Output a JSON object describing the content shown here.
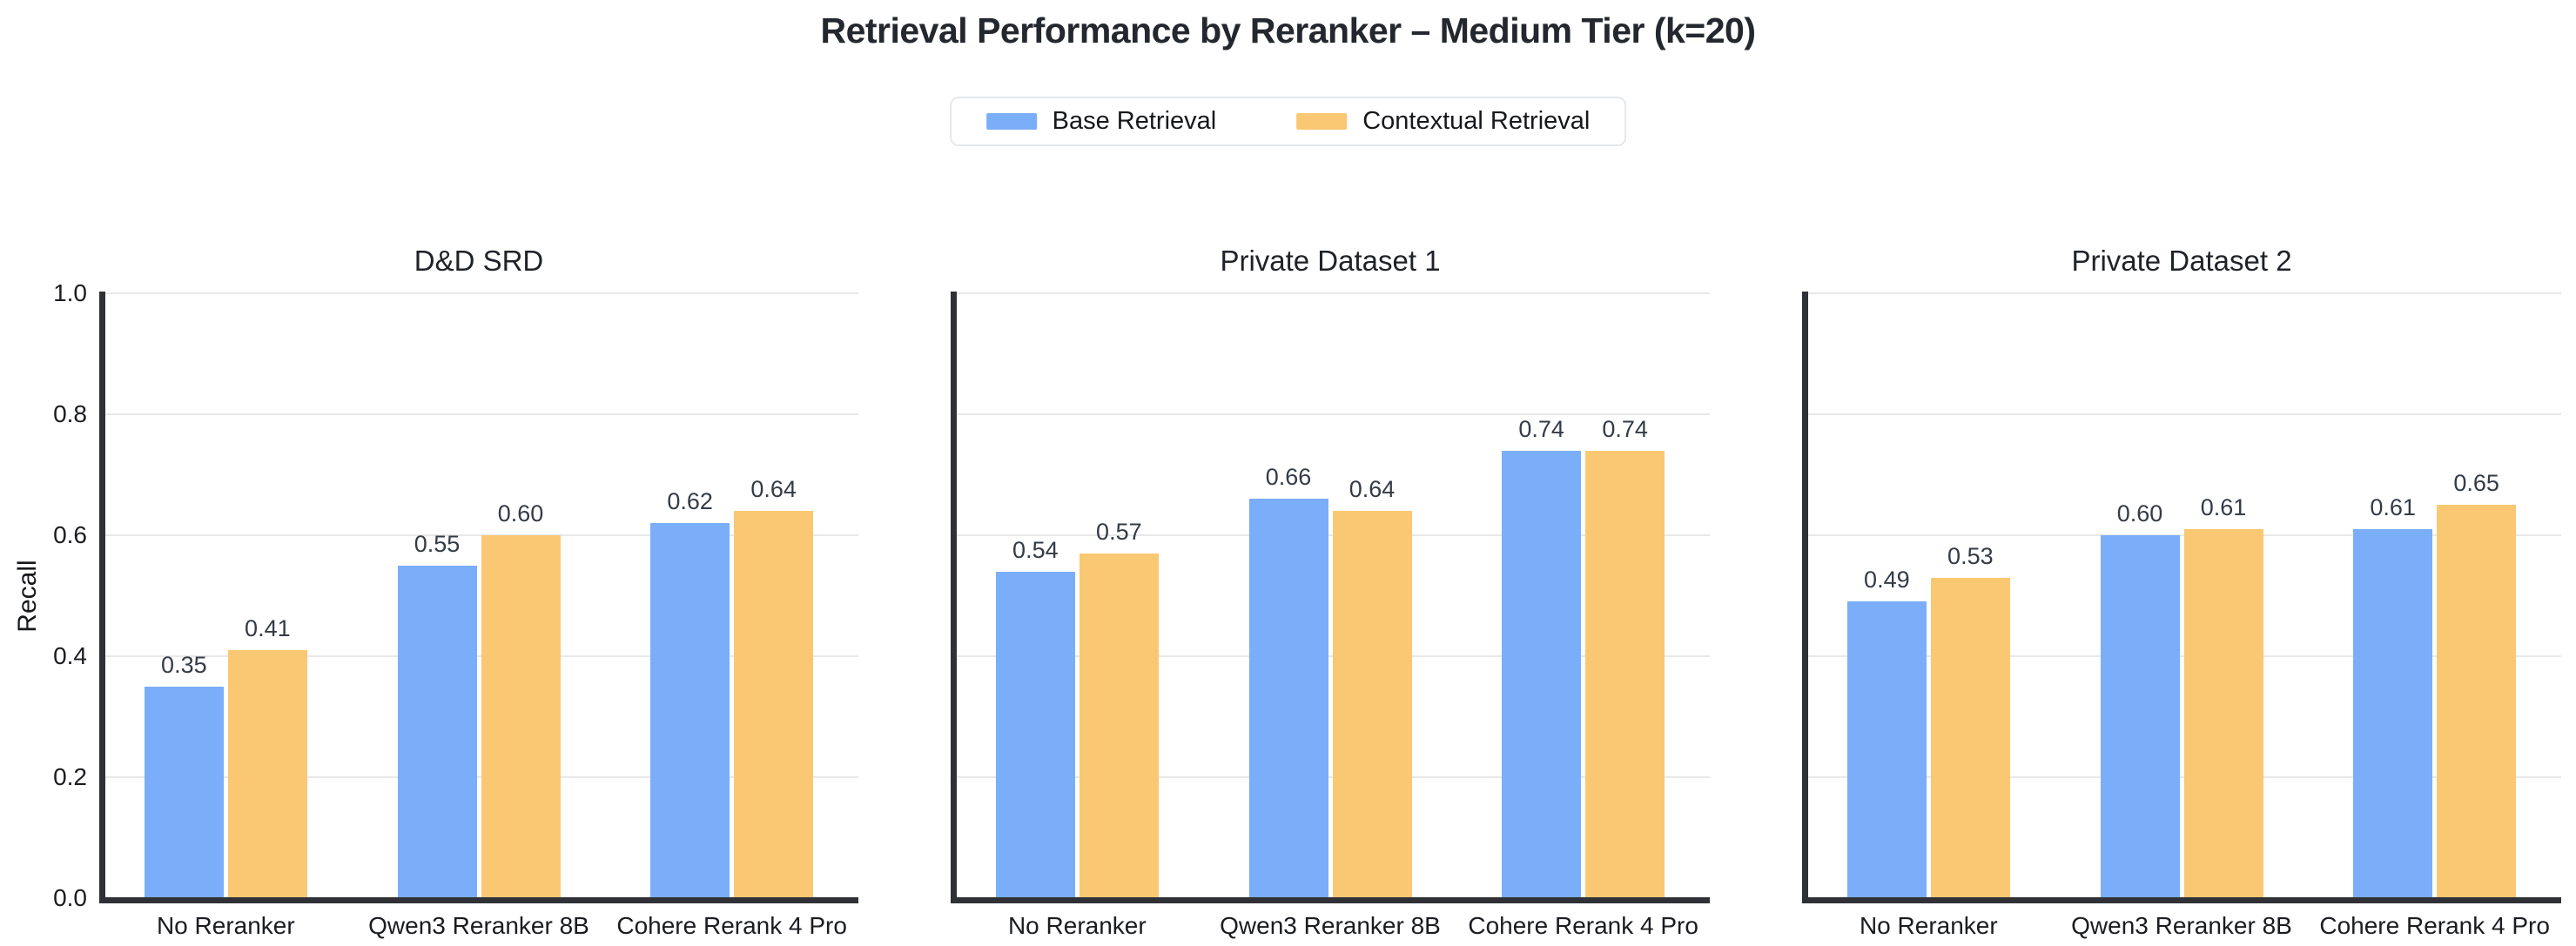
{
  "figure": {
    "title": "Retrieval Performance by Reranker – Medium Tier (k=20)"
  },
  "legend": {
    "items": [
      {
        "label": "Base Retrieval",
        "color": "#7AAEF8"
      },
      {
        "label": "Contextual Retrieval",
        "color": "#FAC872"
      }
    ],
    "position": "top-center"
  },
  "style": {
    "accent_blue": "#7AAEF8",
    "accent_orange": "#FAC872",
    "spine_color": "#2F3136",
    "gridline_color": "#E8E8E8",
    "value_label_color": "#333B46",
    "tick_label_color": "#1A1C20",
    "title_color": "#23272E",
    "background": "#FFFFFF"
  },
  "chart_data": [
    {
      "type": "bar",
      "title": "D&D SRD",
      "categories": [
        "No Reranker",
        "Qwen3 Reranker 8B",
        "Cohere Rerank 4 Pro"
      ],
      "series": [
        {
          "name": "Base Retrieval",
          "color": "#7AAEF8",
          "values": [
            0.35,
            0.55,
            0.62
          ]
        },
        {
          "name": "Contextual Retrieval",
          "color": "#FAC872",
          "values": [
            0.41,
            0.6,
            0.64
          ]
        }
      ],
      "ylabel": "Recall",
      "ylim": [
        0.0,
        1.0
      ],
      "yticks": [
        1.0,
        0.8,
        0.6,
        0.4,
        0.2,
        0.0
      ],
      "show_ytick_labels": true,
      "grid": true,
      "value_label_decimals": 2
    },
    {
      "type": "bar",
      "title": "Private Dataset 1",
      "categories": [
        "No Reranker",
        "Qwen3 Reranker 8B",
        "Cohere Rerank 4 Pro"
      ],
      "series": [
        {
          "name": "Base Retrieval",
          "color": "#7AAEF8",
          "values": [
            0.54,
            0.66,
            0.74
          ]
        },
        {
          "name": "Contextual Retrieval",
          "color": "#FAC872",
          "values": [
            0.57,
            0.64,
            0.74
          ]
        }
      ],
      "ylabel": "",
      "ylim": [
        0.0,
        1.0
      ],
      "yticks": [
        1.0,
        0.8,
        0.6,
        0.4,
        0.2,
        0.0
      ],
      "show_ytick_labels": false,
      "grid": true,
      "value_label_decimals": 2
    },
    {
      "type": "bar",
      "title": "Private Dataset 2",
      "categories": [
        "No Reranker",
        "Qwen3 Reranker 8B",
        "Cohere Rerank 4 Pro"
      ],
      "series": [
        {
          "name": "Base Retrieval",
          "color": "#7AAEF8",
          "values": [
            0.49,
            0.6,
            0.61
          ]
        },
        {
          "name": "Contextual Retrieval",
          "color": "#FAC872",
          "values": [
            0.53,
            0.61,
            0.65
          ]
        }
      ],
      "ylabel": "",
      "ylim": [
        0.0,
        1.0
      ],
      "yticks": [
        1.0,
        0.8,
        0.6,
        0.4,
        0.2,
        0.0
      ],
      "show_ytick_labels": false,
      "grid": true,
      "value_label_decimals": 2
    }
  ]
}
